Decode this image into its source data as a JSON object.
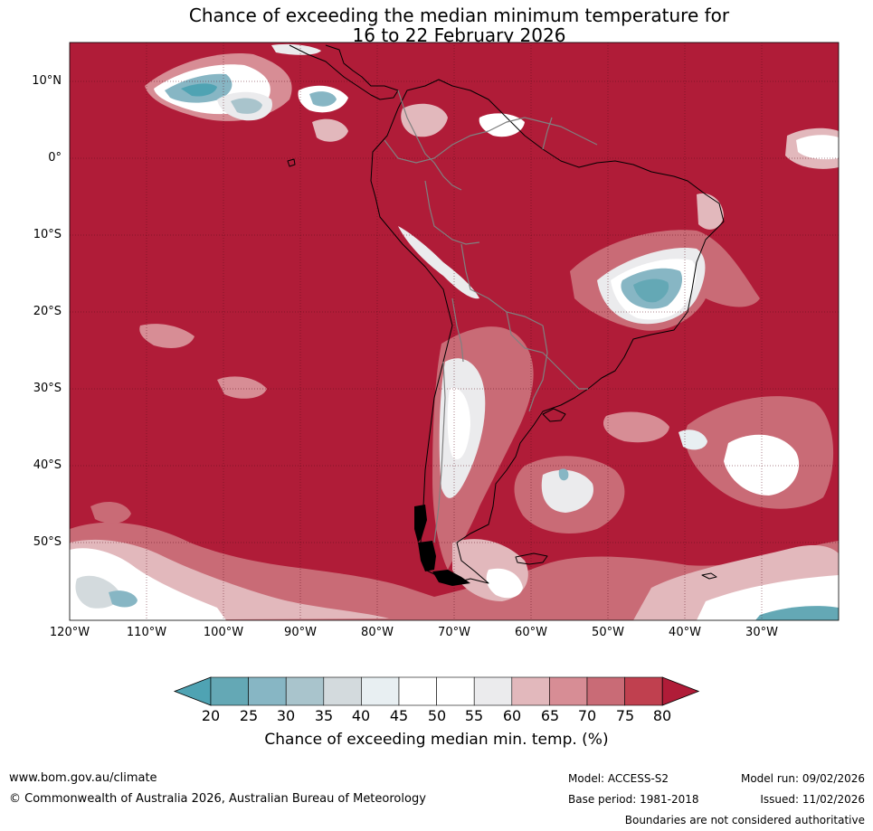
{
  "title_line1": "Chance of exceeding the median minimum temperature for",
  "title_line2": "16 to 22 February 2026",
  "map": {
    "lat_labels": [
      "10°N",
      "0°",
      "10°S",
      "20°S",
      "30°S",
      "40°S",
      "50°S"
    ],
    "lon_labels": [
      "120°W",
      "110°W",
      "100°W",
      "90°W",
      "80°W",
      "70°W",
      "60°W",
      "50°W",
      "40°W",
      "30°W"
    ],
    "lat_range": [
      -60,
      15
    ],
    "lon_range": [
      -120,
      -20
    ],
    "colors": {
      "ocean_high": "#b01c38",
      "p75_80": "#c0404f",
      "p70_75": "#c96b76",
      "p65_70": "#d78d95",
      "p60_65": "#e2b8bc",
      "p55_60": "#ebebed",
      "p45_55": "#ffffff",
      "p40_45": "#e8eff2",
      "p35_40": "#d3dadd",
      "p30_35": "#a9c4cc",
      "p25_30": "#87b6c4",
      "p20_25": "#64a8b5",
      "below20": "#4fa3b3",
      "coast": "#000000",
      "border": "#808080"
    }
  },
  "colorbar": {
    "ticks": [
      "20",
      "25",
      "30",
      "35",
      "40",
      "45",
      "50",
      "55",
      "60",
      "65",
      "70",
      "75",
      "80"
    ],
    "colors": [
      "#64a8b5",
      "#87b6c4",
      "#a9c4cc",
      "#d3dadd",
      "#e8eff2",
      "#ffffff",
      "#ffffff",
      "#ebebed",
      "#e2b8bc",
      "#d78d95",
      "#c96b76",
      "#c0404f"
    ],
    "under_color": "#4fa3b3",
    "over_color": "#b01c38",
    "label": "Chance of exceeding median min. temp. (%)"
  },
  "footer": {
    "url": "www.bom.gov.au/climate",
    "copyright": "© Commonwealth of Australia 2026, Australian Bureau of Meteorology",
    "model": "Model: ACCESS-S2",
    "base_period": "Base period: 1981-2018",
    "model_run": "Model run: 09/02/2026",
    "issued": "Issued: 11/02/2026",
    "boundaries": "Boundaries are not considered authoritative"
  }
}
